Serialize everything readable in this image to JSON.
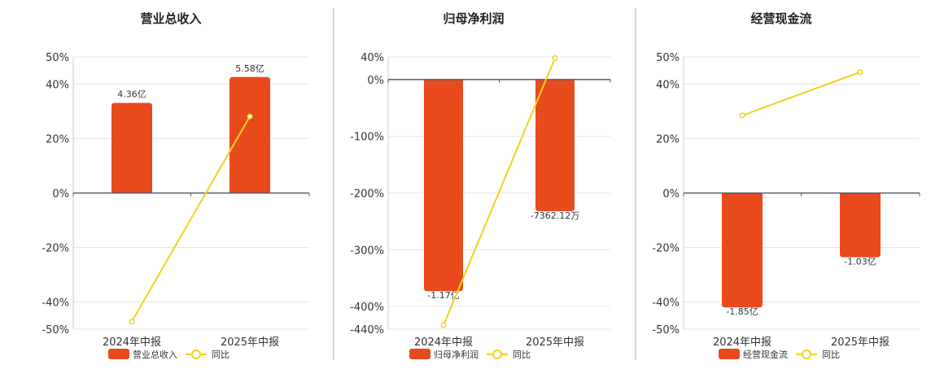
{
  "colors": {
    "bar": "#E84A1C",
    "line": "#F2D21B",
    "grid": "#E6E6E6",
    "axis": "#555A6A",
    "divider": "#AAAAAA"
  },
  "chart_data": [
    {
      "type": "bar",
      "title": "营业总收入",
      "categories": [
        "2024年中报",
        "2025年中报"
      ],
      "ylim": [
        -50,
        50
      ],
      "yticks": [
        -50,
        -40,
        -20,
        0,
        20,
        40,
        50
      ],
      "ytick_labels": [
        "-50%",
        "-40%",
        "-20%",
        "0%",
        "20%",
        "40%",
        "50%"
      ],
      "grid": true,
      "legend_position": "bottom",
      "legend": [
        "营业总收入",
        "同比"
      ],
      "series": [
        {
          "name": "营业总收入",
          "kind": "bar",
          "values": [
            33.1,
            42.6
          ],
          "labels": [
            "4.36亿",
            "5.58亿"
          ]
        },
        {
          "name": "同比",
          "kind": "line",
          "values": [
            -47.2,
            28.1
          ]
        }
      ]
    },
    {
      "type": "bar",
      "title": "归母净利润",
      "categories": [
        "2024年中报",
        "2025年中报"
      ],
      "ylim": [
        -440,
        40
      ],
      "yticks": [
        -440,
        -400,
        -300,
        -200,
        -100,
        0,
        40
      ],
      "ytick_labels": [
        "-440%",
        "-400%",
        "-300%",
        "-200%",
        "-100%",
        "0%",
        "40%"
      ],
      "grid": true,
      "legend_position": "bottom",
      "legend": [
        "归母净利润",
        "同比"
      ],
      "series": [
        {
          "name": "归母净利润",
          "kind": "bar",
          "values": [
            -373,
            -232
          ],
          "labels": [
            "-1.17亿",
            "-7362.12万"
          ]
        },
        {
          "name": "同比",
          "kind": "line",
          "values": [
            -433,
            38
          ]
        }
      ]
    },
    {
      "type": "bar",
      "title": "经营现金流",
      "categories": [
        "2024年中报",
        "2025年中报"
      ],
      "ylim": [
        -50,
        50
      ],
      "yticks": [
        -50,
        -40,
        -20,
        0,
        20,
        40,
        50
      ],
      "ytick_labels": [
        "-50%",
        "-40%",
        "-20%",
        "0%",
        "20%",
        "40%",
        "50%"
      ],
      "grid": true,
      "legend_position": "bottom",
      "legend": [
        "经营现金流",
        "同比"
      ],
      "series": [
        {
          "name": "经营现金流",
          "kind": "bar",
          "values": [
            -42,
            -23.6
          ],
          "labels": [
            "-1.85亿",
            "-1.03亿"
          ]
        },
        {
          "name": "同比",
          "kind": "line",
          "values": [
            28.5,
            44.4
          ]
        }
      ]
    }
  ]
}
